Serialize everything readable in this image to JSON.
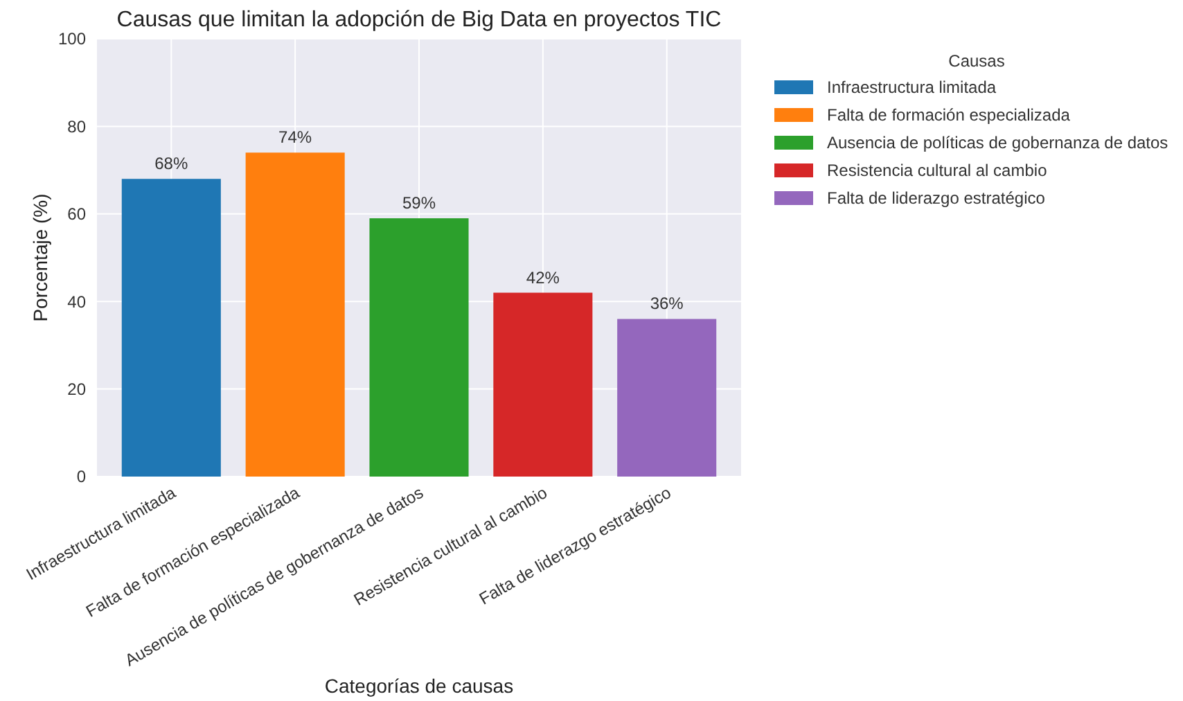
{
  "chart_data": {
    "type": "bar",
    "title": "Causas que limitan la adopción de Big Data en proyectos TIC",
    "xlabel": "Categorías de causas",
    "ylabel": "Porcentaje (%)",
    "legend_title": "Causas",
    "categories": [
      "Infraestructura limitada",
      "Falta de formación especializada",
      "Ausencia de políticas de gobernanza de datos",
      "Resistencia cultural al cambio",
      "Falta de liderazgo estratégico"
    ],
    "series": [
      {
        "name": "Infraestructura limitada",
        "color": "#1f77b4",
        "values": [
          68,
          null,
          null,
          null,
          null
        ],
        "value_labels": [
          "68%",
          null,
          null,
          null,
          null
        ]
      },
      {
        "name": "Falta de formación especializada",
        "color": "#ff7f0e",
        "values": [
          null,
          74,
          null,
          null,
          null
        ],
        "value_labels": [
          null,
          "74%",
          null,
          null,
          null
        ]
      },
      {
        "name": "Ausencia de políticas de gobernanza de datos",
        "color": "#2ca02c",
        "values": [
          null,
          null,
          59,
          null,
          null
        ],
        "value_labels": [
          null,
          null,
          "59%",
          null,
          null
        ]
      },
      {
        "name": "Resistencia cultural al cambio",
        "color": "#d62728",
        "values": [
          null,
          null,
          null,
          42,
          null
        ],
        "value_labels": [
          null,
          null,
          null,
          "42%",
          null
        ]
      },
      {
        "name": "Falta de liderazgo estratégico",
        "color": "#9467bd",
        "values": [
          null,
          null,
          null,
          null,
          36
        ],
        "value_labels": [
          null,
          null,
          null,
          null,
          "36%"
        ]
      }
    ],
    "ylim": [
      0,
      100
    ],
    "yticks": [
      0,
      20,
      40,
      60,
      80,
      100
    ],
    "grid": true,
    "legend": "right"
  }
}
